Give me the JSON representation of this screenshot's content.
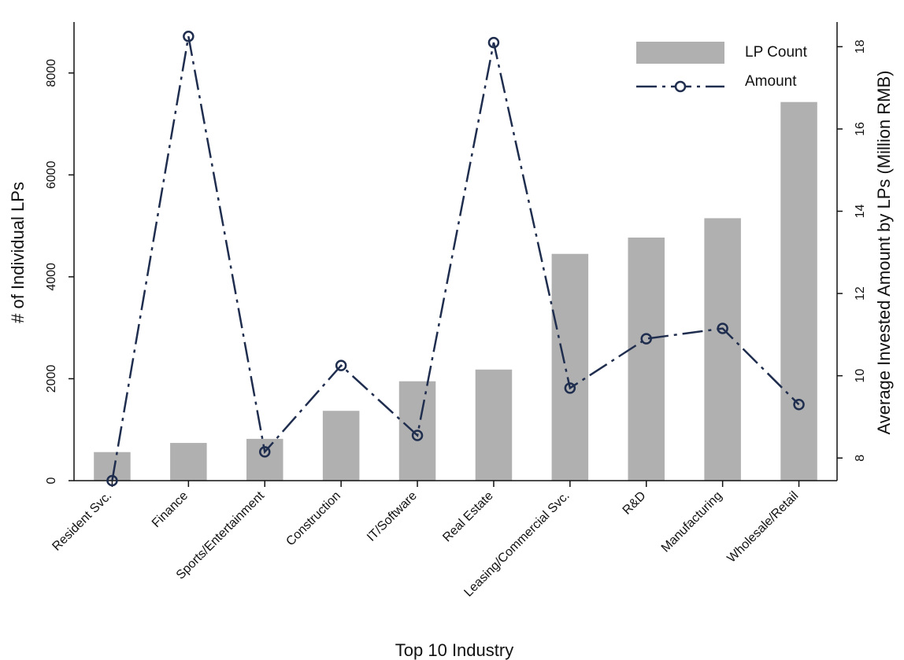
{
  "chart_data": {
    "type": "bar",
    "categories": [
      "Resident Svc.",
      "Finance",
      "Sports/Entertainment",
      "Construction",
      "IT/Software",
      "Real Estate",
      "Leasing/Commercial Svc.",
      "R&D",
      "Manufacturing",
      "Wholesale/Retail"
    ],
    "series": [
      {
        "name": "LP Count",
        "type": "bar",
        "axis": "left",
        "color": "#b0b0b0",
        "values": [
          560,
          740,
          820,
          1370,
          1950,
          2180,
          4450,
          4770,
          5150,
          7430
        ]
      },
      {
        "name": "Amount",
        "type": "line",
        "axis": "right",
        "color": "#1f2d4e",
        "line_style": "dash-dot",
        "marker": "hollow-circle",
        "values": [
          7.45,
          18.25,
          8.15,
          10.25,
          8.55,
          18.1,
          9.7,
          10.9,
          11.15,
          9.3
        ]
      }
    ],
    "xlabel": "Top 10 Industry",
    "ylabel": "# of Individual LPs",
    "ylabel_right": "Average Invested Amount by LPs (Million RMB)",
    "ylim": [
      0,
      9000
    ],
    "ylim_right": [
      7.45,
      18.6
    ],
    "yticks": [
      0,
      2000,
      4000,
      6000,
      8000
    ],
    "yticks_right": [
      8,
      10,
      12,
      14,
      16,
      18
    ],
    "grid": false,
    "legend": {
      "position": "top-right",
      "entries": [
        "LP Count",
        "Amount"
      ]
    }
  }
}
